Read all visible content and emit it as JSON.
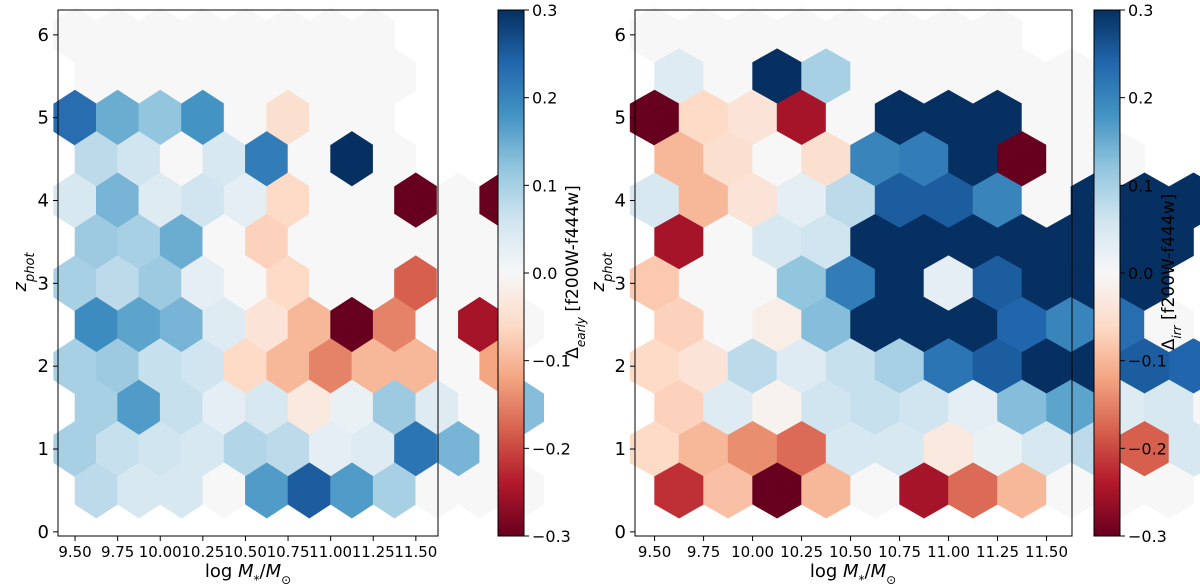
{
  "chart_data": [
    {
      "type": "heatmap",
      "subtype": "hexbin",
      "xlabel": "log M_*/M_☉",
      "xlabel_parts": {
        "main": "log ",
        "m": "M",
        "m_sub": "*",
        "slash": "/",
        "m2": "M",
        "m2_sub": "⊙"
      },
      "ylabel": "z_phot",
      "ylabel_parts": {
        "main": "z",
        "sub": "phot"
      },
      "xlim": [
        9.4,
        11.63
      ],
      "ylim": [
        -0.05,
        6.3
      ],
      "xticks": [
        9.5,
        9.75,
        10.0,
        10.25,
        10.5,
        10.75,
        11.0,
        11.25,
        11.5
      ],
      "xtick_labels": [
        "9.50",
        "9.75",
        "10.00",
        "10.25",
        "10.50",
        "10.75",
        "11.00",
        "11.25",
        "11.50"
      ],
      "yticks": [
        0,
        1,
        2,
        3,
        4,
        5,
        6
      ],
      "ytick_labels": [
        "0",
        "1",
        "2",
        "3",
        "4",
        "5",
        "6"
      ],
      "colorbar": {
        "label": "Δ_early [f200W-f444w]",
        "label_parts": {
          "delta": "Δ",
          "sub": "early",
          "rest": " [f200W-f444w]"
        },
        "range": [
          -0.3,
          0.3
        ],
        "ticks": [
          0.3,
          0.2,
          0.1,
          0.0,
          -0.1,
          -0.2,
          -0.3
        ],
        "tick_labels": [
          "0.3",
          "0.2",
          "0.1",
          "0.0",
          "−0.1",
          "−0.2",
          "−0.3"
        ],
        "colormap": "RdBu"
      },
      "hexbin_rows": [
        {
          "y": 6.0,
          "x_start": 9.5,
          "values": [
            0,
            0,
            0,
            0,
            0,
            0,
            0,
            0
          ]
        },
        {
          "y": 5.5,
          "x_start": 9.625,
          "values": [
            0,
            0,
            0,
            0,
            0,
            0,
            0,
            0
          ]
        },
        {
          "y": 5.0,
          "x_start": 9.5,
          "values": [
            0.23,
            0.15,
            0.12,
            0.18,
            0,
            -0.05,
            0,
            0
          ]
        },
        {
          "y": 4.5,
          "x_start": 9.625,
          "values": [
            0.08,
            0.06,
            0,
            0.05,
            0.21,
            0,
            0.3,
            0
          ]
        },
        {
          "y": 4.0,
          "x_start": 9.5,
          "values": [
            0.05,
            0.14,
            0.04,
            0.06,
            0.03,
            -0.06,
            0,
            0,
            -0.3,
            0,
            -0.3
          ]
        },
        {
          "y": 3.5,
          "x_start": 9.625,
          "values": [
            0.11,
            0.1,
            0.15,
            0,
            -0.07,
            0,
            0,
            0,
            0,
            0
          ]
        },
        {
          "y": 3.0,
          "x_start": 9.5,
          "values": [
            0.1,
            0.08,
            0.11,
            0.03,
            0,
            -0.06,
            0,
            0,
            -0.18,
            0,
            0
          ]
        },
        {
          "y": 2.5,
          "x_start": 9.625,
          "values": [
            0.19,
            0.16,
            0.14,
            0.04,
            -0.04,
            -0.1,
            -0.3,
            -0.15,
            0,
            -0.25,
            0
          ]
        },
        {
          "y": 2.0,
          "x_start": 9.5,
          "values": [
            0.1,
            0.11,
            0.07,
            0.06,
            -0.06,
            -0.1,
            -0.15,
            -0.1,
            -0.1,
            0,
            -0.12
          ]
        },
        {
          "y": 1.5,
          "x_start": 9.625,
          "values": [
            0.1,
            0.17,
            0.07,
            0.03,
            0.05,
            -0.03,
            0.02,
            0.11,
            0.04,
            0,
            0.13
          ]
        },
        {
          "y": 1.0,
          "x_start": 9.5,
          "values": [
            0.1,
            0.07,
            0.06,
            0.05,
            0.09,
            0.08,
            0.03,
            0.04,
            0.22,
            0.14,
            0
          ]
        },
        {
          "y": 0.5,
          "x_start": 9.625,
          "values": [
            0.08,
            0.05,
            0.05,
            0,
            0.17,
            0.25,
            0.17,
            0.1,
            0,
            0,
            0
          ]
        }
      ]
    },
    {
      "type": "heatmap",
      "subtype": "hexbin",
      "xlabel": "log M_*/M_☉",
      "xlabel_parts": {
        "main": "log ",
        "m": "M",
        "m_sub": "*",
        "slash": "/",
        "m2": "M",
        "m2_sub": "⊙"
      },
      "ylabel": "z_phot",
      "ylabel_parts": {
        "main": "z",
        "sub": "phot"
      },
      "xlim": [
        9.4,
        11.63
      ],
      "ylim": [
        -0.05,
        6.3
      ],
      "xticks": [
        9.5,
        9.75,
        10.0,
        10.25,
        10.5,
        10.75,
        11.0,
        11.25,
        11.5
      ],
      "xtick_labels": [
        "9.50",
        "9.75",
        "10.00",
        "10.25",
        "10.50",
        "10.75",
        "11.00",
        "11.25",
        "11.50"
      ],
      "yticks": [
        0,
        1,
        2,
        3,
        4,
        5,
        6
      ],
      "ytick_labels": [
        "0",
        "1",
        "2",
        "3",
        "4",
        "5",
        "6"
      ],
      "colorbar": {
        "label": "Δ_irr [f200W-f444w]",
        "label_parts": {
          "delta": "Δ",
          "sub": "irr",
          "rest": " [f200W-f444w]"
        },
        "range": [
          -0.3,
          0.3
        ],
        "ticks": [
          0.3,
          0.2,
          0.1,
          0.0,
          -0.1,
          -0.2,
          -0.3
        ],
        "tick_labels": [
          "0.3",
          "0.2",
          "0.1",
          "0.0",
          "−0.1",
          "−0.2",
          "−0.3"
        ],
        "colormap": "RdBu"
      },
      "hexbin_rows": [
        {
          "y": 6.0,
          "x_start": 9.5,
          "values": [
            0,
            0,
            0,
            0,
            0,
            0,
            0,
            0
          ]
        },
        {
          "y": 5.5,
          "x_start": 9.625,
          "values": [
            0.04,
            0,
            0.3,
            0.1,
            0,
            0,
            0,
            0,
            0
          ]
        },
        {
          "y": 5.0,
          "x_start": 9.5,
          "values": [
            -0.3,
            -0.06,
            -0.04,
            -0.25,
            0,
            0.3,
            0.3,
            0.3,
            0,
            0
          ]
        },
        {
          "y": 4.5,
          "x_start": 9.625,
          "values": [
            -0.1,
            -0.05,
            0,
            -0.05,
            0.2,
            0.21,
            0.3,
            -0.3,
            0,
            0
          ]
        },
        {
          "y": 4.0,
          "x_start": 9.5,
          "values": [
            0.05,
            -0.1,
            -0.04,
            0.03,
            0.08,
            0.25,
            0.25,
            0.2,
            0,
            0.3,
            0.3,
            0.3
          ]
        },
        {
          "y": 3.5,
          "x_start": 9.625,
          "values": [
            -0.25,
            0,
            0.05,
            0.06,
            0.3,
            0.3,
            0.3,
            0.3,
            0.3,
            0.3,
            0.3
          ]
        },
        {
          "y": 3.0,
          "x_start": 9.5,
          "values": [
            -0.08,
            0,
            0,
            0.12,
            0.21,
            0.3,
            0.03,
            0.25,
            0.3,
            0.3,
            0.3
          ]
        },
        {
          "y": 2.5,
          "x_start": 9.625,
          "values": [
            -0.07,
            0,
            -0.02,
            0.13,
            0.3,
            0.3,
            0.3,
            0.24,
            0.2,
            0.23,
            0
          ]
        },
        {
          "y": 2.0,
          "x_start": 9.5,
          "values": [
            -0.06,
            -0.04,
            0.08,
            0.04,
            0.07,
            0.1,
            0.22,
            0.25,
            0.3,
            0.3,
            0.25,
            0.24
          ]
        },
        {
          "y": 1.5,
          "x_start": 9.625,
          "values": [
            -0.07,
            0.04,
            -0.01,
            0.06,
            0.07,
            0.06,
            0.03,
            0.13,
            0.16,
            0.04,
            0.05,
            0
          ]
        },
        {
          "y": 1.0,
          "x_start": 9.5,
          "values": [
            -0.06,
            -0.1,
            -0.14,
            -0.17,
            0.05,
            0.05,
            -0.03,
            0.02,
            0.05,
            0.08,
            -0.18,
            0.05
          ]
        },
        {
          "y": 0.5,
          "x_start": 9.625,
          "values": [
            -0.22,
            -0.09,
            -0.3,
            -0.1,
            0,
            -0.25,
            -0.17,
            -0.1,
            0,
            0,
            0
          ]
        }
      ]
    }
  ]
}
